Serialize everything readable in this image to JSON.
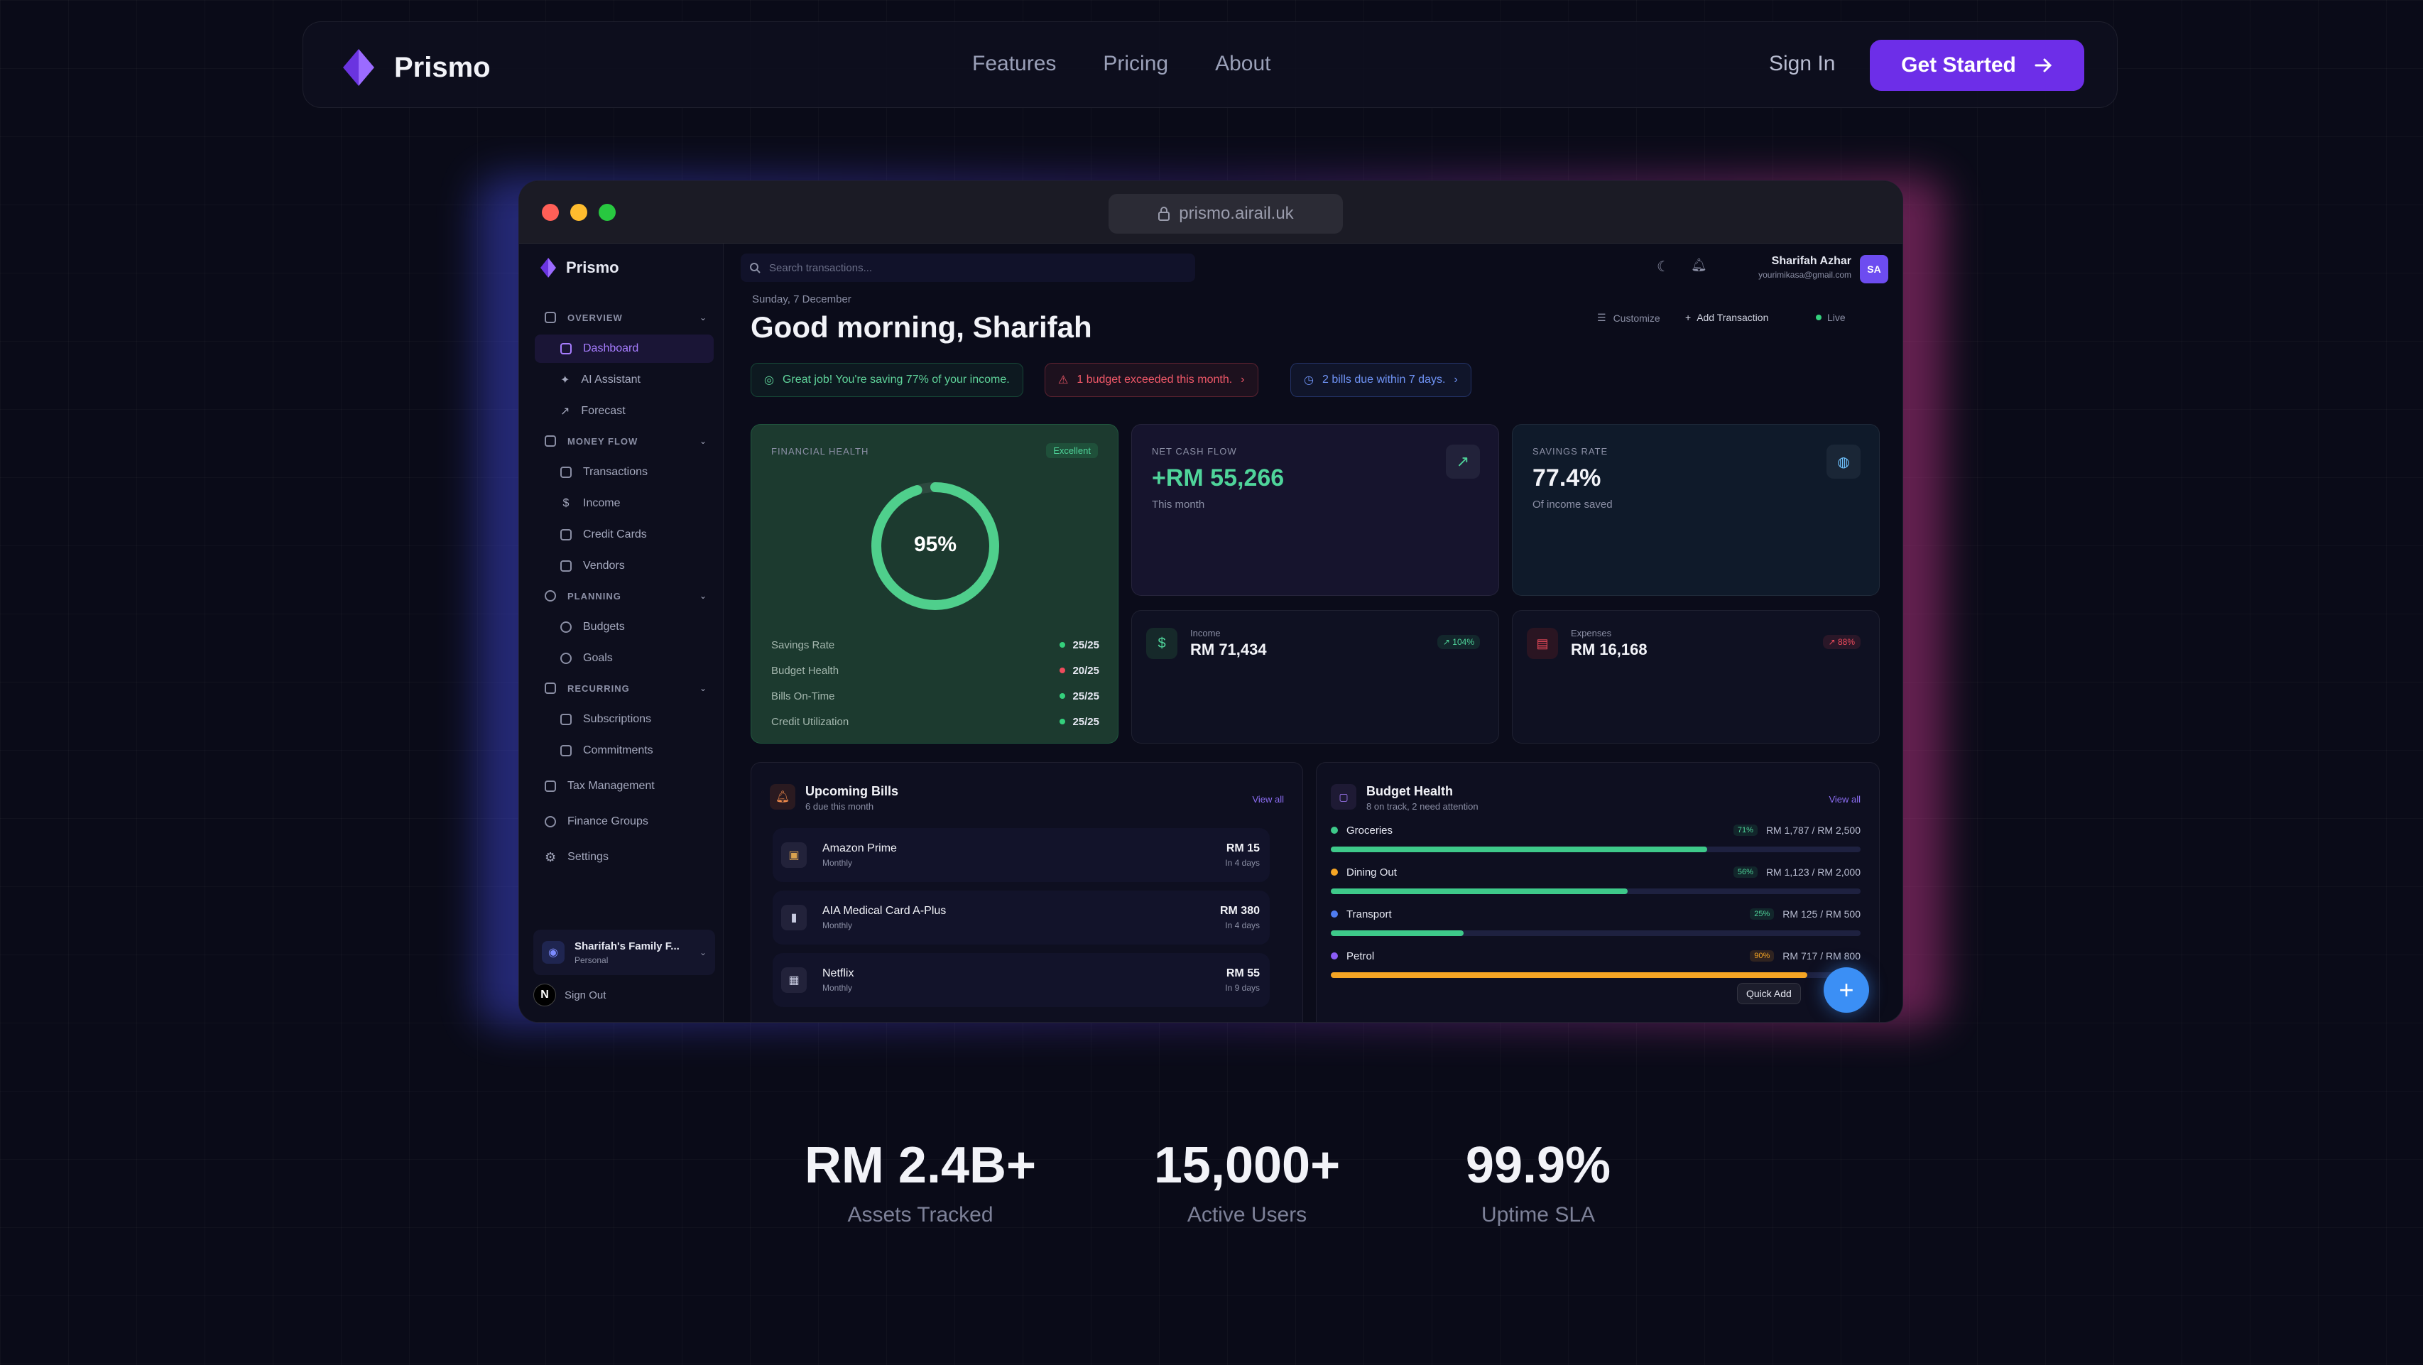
{
  "nav": {
    "brand": "Prismo",
    "links": [
      "Features",
      "Pricing",
      "About"
    ],
    "sign_in": "Sign In",
    "get_started": "Get Started"
  },
  "browser": {
    "url": "prismo.airail.uk"
  },
  "sidebar": {
    "brand": "Prismo",
    "sections": {
      "overview": "OVERVIEW",
      "money_flow": "MONEY FLOW",
      "planning": "PLANNING",
      "recurring": "RECURRING"
    },
    "items": {
      "dashboard": "Dashboard",
      "ai_assistant": "AI Assistant",
      "forecast": "Forecast",
      "transactions": "Transactions",
      "income": "Income",
      "credit_cards": "Credit Cards",
      "vendors": "Vendors",
      "budgets": "Budgets",
      "goals": "Goals",
      "subscriptions": "Subscriptions",
      "commitments": "Commitments",
      "tax_management": "Tax Management",
      "finance_groups": "Finance Groups",
      "settings": "Settings"
    },
    "group": {
      "name": "Sharifah's Family F...",
      "type": "Personal"
    },
    "sign_out": "Sign Out",
    "sign_out_avatar": "N"
  },
  "header": {
    "search_placeholder": "Search transactions...",
    "user_name": "Sharifah Azhar",
    "user_email": "yourimikasa@gmail.com",
    "user_initials": "SA",
    "date": "Sunday, 7 December",
    "greeting": "Good morning, Sharifah",
    "customize": "Customize",
    "add_transaction": "Add Transaction",
    "live": "Live"
  },
  "alerts": {
    "saving": "Great job! You're saving 77% of your income.",
    "budget": "1 budget exceeded this month.",
    "bills": "2 bills due within 7 days."
  },
  "health": {
    "title": "FINANCIAL HEALTH",
    "badge": "Excellent",
    "score": "95%",
    "score_value": 0.95,
    "metrics": [
      {
        "label": "Savings Rate",
        "value": "25/25",
        "color": "#34d07c"
      },
      {
        "label": "Budget Health",
        "value": "20/25",
        "color": "#ef4b5c"
      },
      {
        "label": "Bills On-Time",
        "value": "25/25",
        "color": "#34d07c"
      },
      {
        "label": "Credit Utilization",
        "value": "25/25",
        "color": "#34d07c"
      }
    ]
  },
  "cashflow": {
    "title": "NET CASH FLOW",
    "value": "+RM 55,266",
    "sub": "This month"
  },
  "savings": {
    "title": "SAVINGS RATE",
    "value": "77.4%",
    "sub": "Of income saved"
  },
  "income": {
    "label": "Income",
    "value": "RM 71,434",
    "badge": "↗ 104%"
  },
  "expenses": {
    "label": "Expenses",
    "value": "RM 16,168",
    "badge": "↗ 88%"
  },
  "bills": {
    "title": "Upcoming Bills",
    "sub": "6 due this month",
    "view_all": "View all",
    "rows": [
      {
        "name": "Amazon Prime",
        "freq": "Monthly",
        "amount": "RM 15",
        "due": "In 4 days"
      },
      {
        "name": "AIA Medical Card A-Plus",
        "freq": "Monthly",
        "amount": "RM 380",
        "due": "In 4 days"
      },
      {
        "name": "Netflix",
        "freq": "Monthly",
        "amount": "RM 55",
        "due": "In 9 days"
      }
    ]
  },
  "budget": {
    "title": "Budget Health",
    "sub": "8 on track, 2 need attention",
    "view_all": "View all",
    "rows": [
      {
        "name": "Groceries",
        "pct": "71%",
        "amount": "RM 1,787 / RM 2,500",
        "progress": 0.71,
        "color": "#3ec98a",
        "dot": "#3ec98a"
      },
      {
        "name": "Dining Out",
        "pct": "56%",
        "amount": "RM 1,123 / RM 2,000",
        "progress": 0.56,
        "color": "#3ec98a",
        "dot": "#f5a524"
      },
      {
        "name": "Transport",
        "pct": "25%",
        "amount": "RM 125 / RM 500",
        "progress": 0.25,
        "color": "#3ec98a",
        "dot": "#4f7cf0"
      },
      {
        "name": "Petrol",
        "pct": "90%",
        "amount": "RM 717 / RM 800",
        "progress": 0.9,
        "color": "#f5a524",
        "dot": "#8b5cf6"
      }
    ],
    "quick_add": "Quick Add"
  },
  "stats": [
    {
      "value": "RM 2.4B+",
      "label": "Assets Tracked"
    },
    {
      "value": "15,000+",
      "label": "Active Users"
    },
    {
      "value": "99.9%",
      "label": "Uptime SLA"
    }
  ]
}
